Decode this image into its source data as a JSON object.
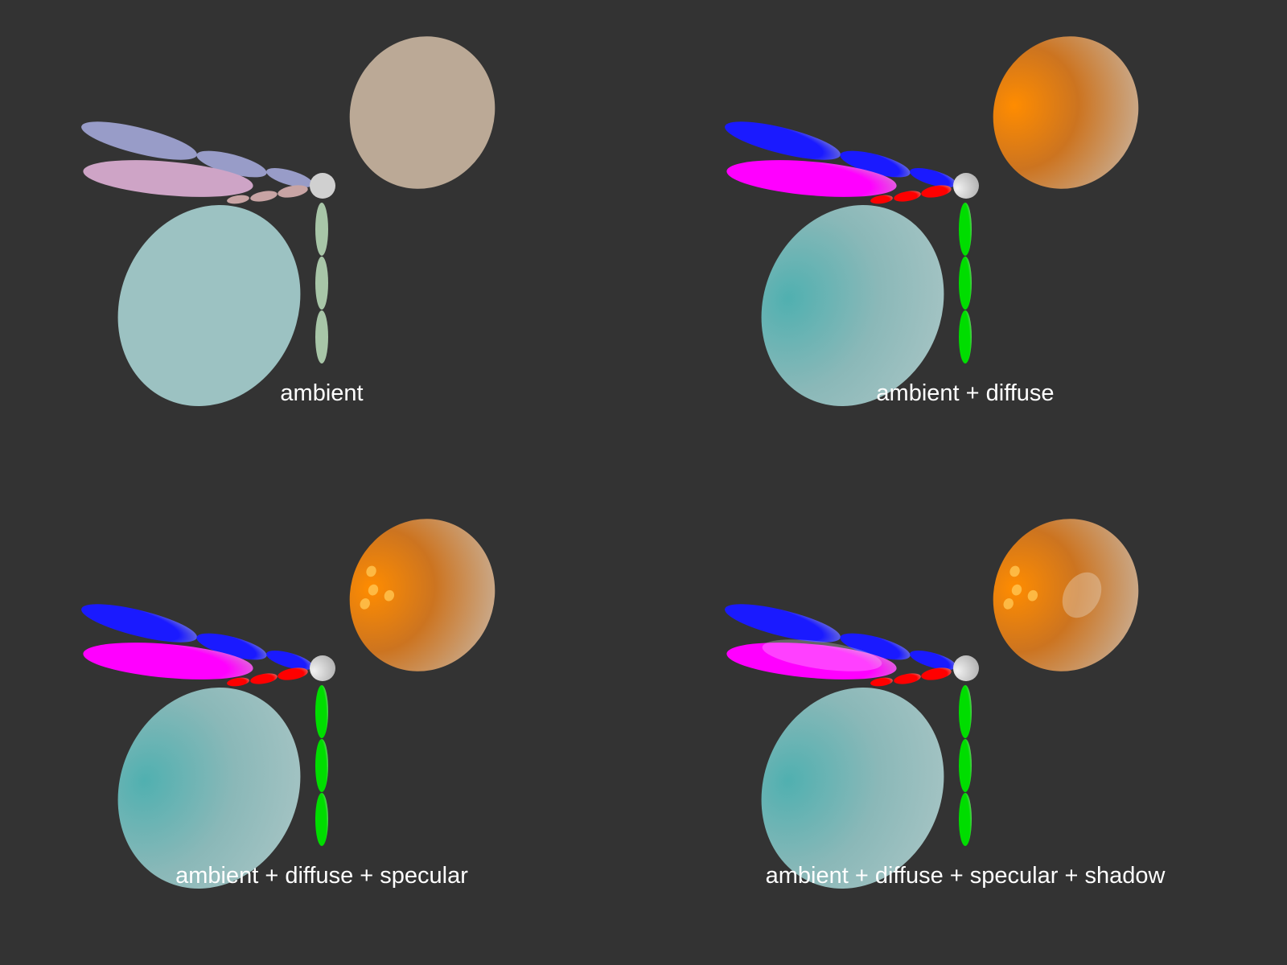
{
  "panels": [
    {
      "caption": "ambient",
      "mode": "ambient"
    },
    {
      "caption": "ambient + diffuse",
      "mode": "diffuse"
    },
    {
      "caption": "ambient + diffuse + specular",
      "mode": "specular"
    },
    {
      "caption": "ambient + diffuse + specular + shadow",
      "mode": "shadow"
    }
  ],
  "colors": {
    "background": "#333333",
    "caption_text": "#ffffff",
    "orange_ellipsoid": "#ff8a00",
    "cyan_ellipsoid": "#5fb8b8",
    "blue_ellipsoids": "#1a1aff",
    "magenta_ellipsoid": "#ff00ff",
    "red_ellipsoids": "#ff0000",
    "green_ellipsoids": "#00dd00",
    "white_sphere": "#dddddd"
  }
}
